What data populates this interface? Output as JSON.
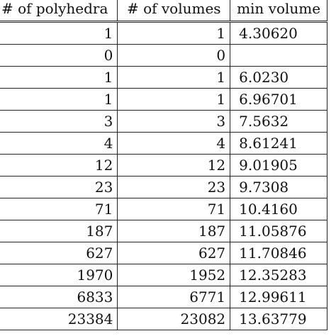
{
  "table": {
    "headers": [
      "# of polyhedra",
      "# of volumes",
      "min volume"
    ],
    "rows": [
      {
        "polyhedra": "1",
        "volumes": "1",
        "min_volume": "4.30620"
      },
      {
        "polyhedra": "0",
        "volumes": "0",
        "min_volume": ""
      },
      {
        "polyhedra": "1",
        "volumes": "1",
        "min_volume": "6.0230"
      },
      {
        "polyhedra": "1",
        "volumes": "1",
        "min_volume": "6.96701"
      },
      {
        "polyhedra": "3",
        "volumes": "3",
        "min_volume": "7.5632"
      },
      {
        "polyhedra": "4",
        "volumes": "4",
        "min_volume": "8.61241"
      },
      {
        "polyhedra": "12",
        "volumes": "12",
        "min_volume": "9.01905"
      },
      {
        "polyhedra": "23",
        "volumes": "23",
        "min_volume": "9.7308"
      },
      {
        "polyhedra": "71",
        "volumes": "71",
        "min_volume": "10.4160"
      },
      {
        "polyhedra": "187",
        "volumes": "187",
        "min_volume": "11.05876"
      },
      {
        "polyhedra": "627",
        "volumes": "627",
        "min_volume": "11.70846"
      },
      {
        "polyhedra": "1970",
        "volumes": "1952",
        "min_volume": "12.35283"
      },
      {
        "polyhedra": "6833",
        "volumes": "6771",
        "min_volume": "12.99611"
      },
      {
        "polyhedra": "23384",
        "volumes": "23082",
        "min_volume": "13.63779"
      }
    ]
  }
}
